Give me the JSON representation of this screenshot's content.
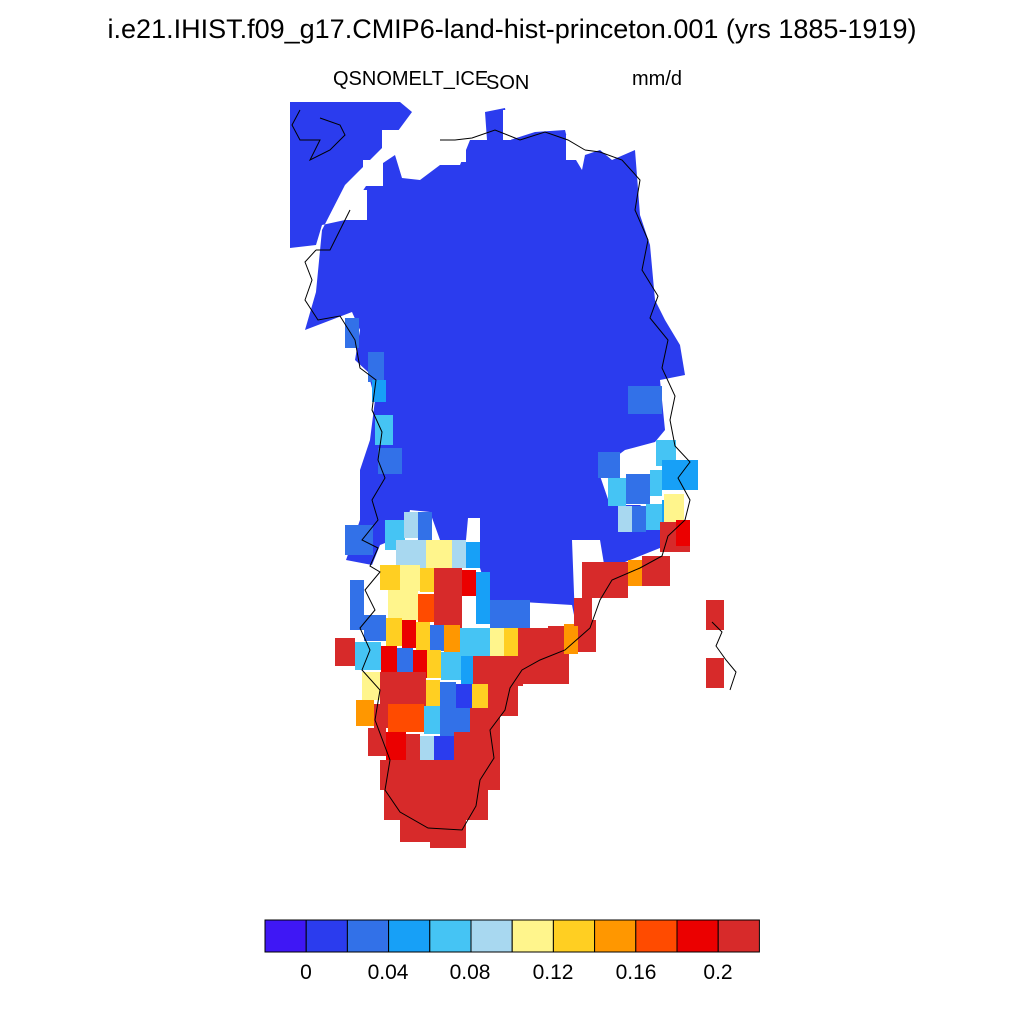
{
  "title": "i.e21.IHIST.f09_g17.CMIP6-land-hist-princeton.001 (yrs 1885-1919)",
  "variable": "QSNOMELT_ICE",
  "season": "SON",
  "units": "mm/d",
  "colorbar": {
    "colors": [
      "#3f17f5",
      "#2b3cee",
      "#3271e8",
      "#17a0f7",
      "#45c4f4",
      "#a8d8f0",
      "#fff58c",
      "#ffcf22",
      "#ff9700",
      "#ff4b00",
      "#eb0000",
      "#d72a2a"
    ],
    "tick_labels": [
      "0",
      "0.04",
      "0.08",
      "0.12",
      "0.16",
      "0.2"
    ]
  }
}
